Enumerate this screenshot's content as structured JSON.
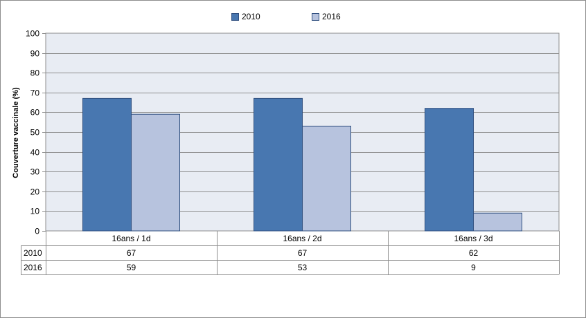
{
  "chart_data": {
    "type": "bar",
    "title": "",
    "xlabel": "",
    "ylabel": "Couverture vaccinale (%)",
    "ylim": [
      0,
      100
    ],
    "yticks": [
      0,
      10,
      20,
      30,
      40,
      50,
      60,
      70,
      80,
      90,
      100
    ],
    "grid": true,
    "legend_position": "top",
    "categories": [
      "16ans / 1d",
      "16ans / 2d",
      "16ans / 3d"
    ],
    "series": [
      {
        "name": "2010",
        "color": "#4877b0",
        "values": [
          67,
          67,
          62
        ]
      },
      {
        "name": "2016",
        "color": "#b7c3de",
        "values": [
          59,
          53,
          9
        ]
      }
    ],
    "data_table": true
  }
}
